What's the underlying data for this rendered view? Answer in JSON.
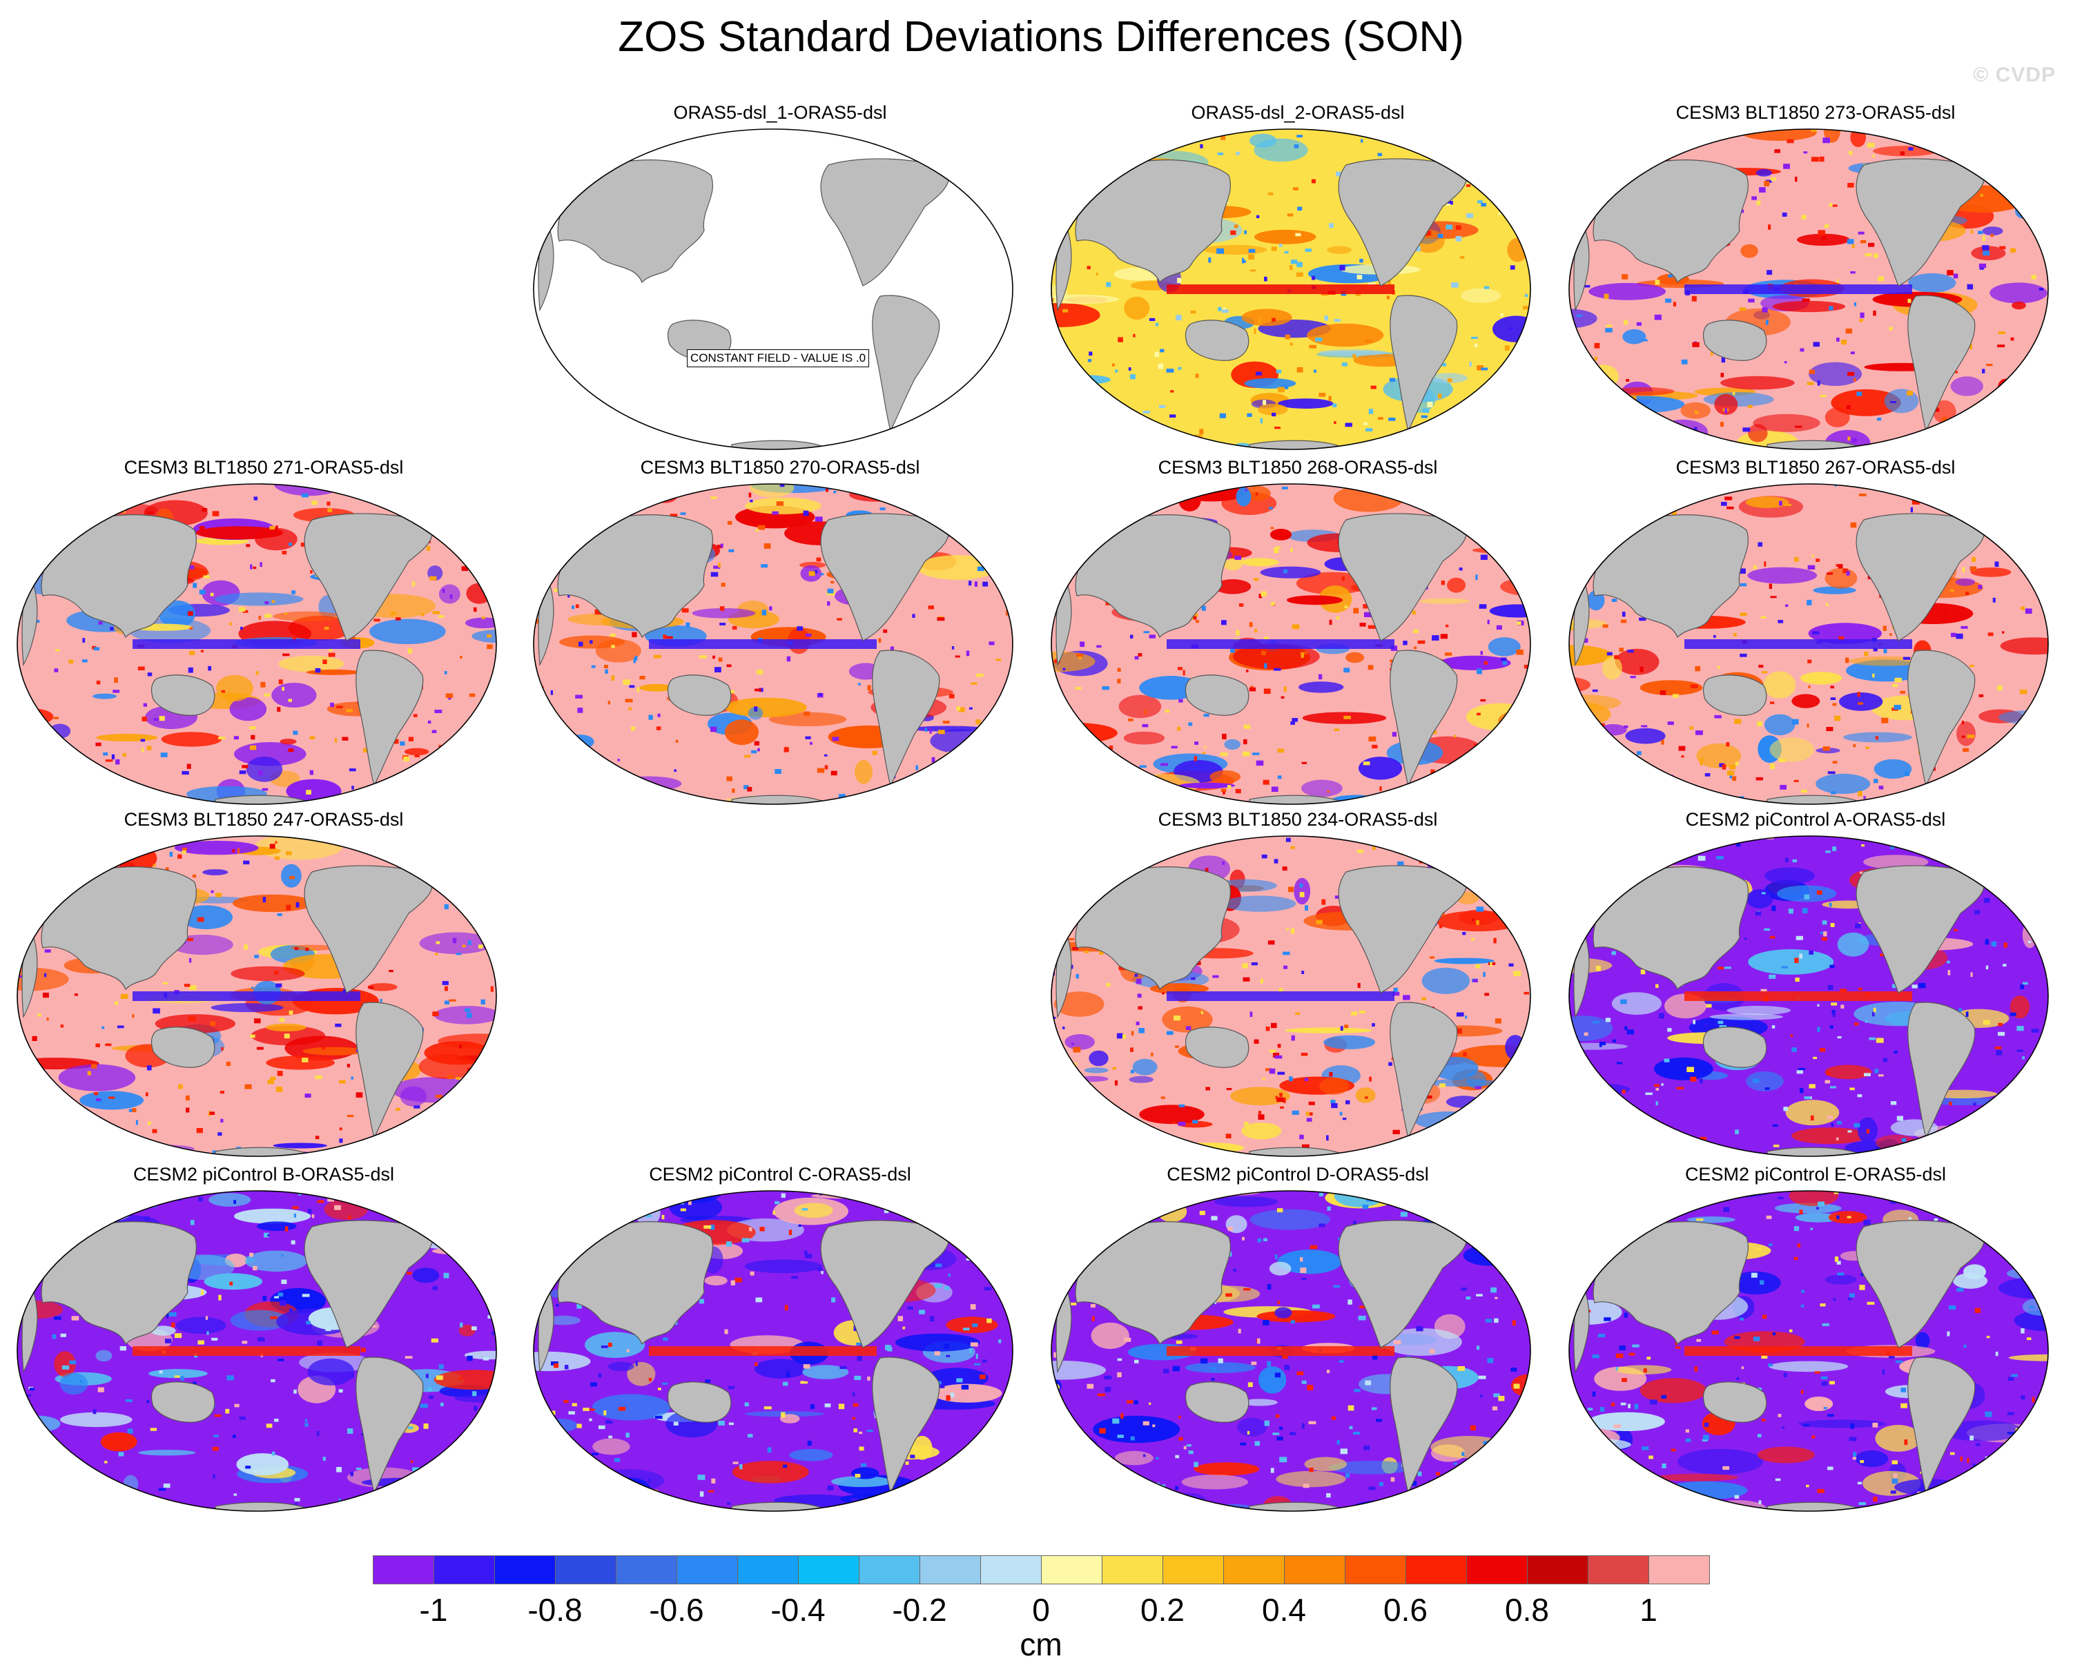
{
  "title": "ZOS Standard Deviations Differences (SON)",
  "watermark": "© CVDP",
  "panels": [
    {
      "title": "ORAS5-dsl_1-ORAS5-dsl",
      "pattern": "constant",
      "note": "CONSTANT FIELD - VALUE IS .0"
    },
    {
      "title": "ORAS5-dsl_2-ORAS5-dsl",
      "pattern": "mixed"
    },
    {
      "title": "CESM3 BLT1850 273-ORAS5-dsl",
      "pattern": "positive"
    },
    {
      "title": "CESM3 BLT1850 271-ORAS5-dsl",
      "pattern": "positive"
    },
    {
      "title": "CESM3 BLT1850 270-ORAS5-dsl",
      "pattern": "positive"
    },
    {
      "title": "CESM3 BLT1850 268-ORAS5-dsl",
      "pattern": "positive"
    },
    {
      "title": "CESM3 BLT1850 267-ORAS5-dsl",
      "pattern": "positive"
    },
    {
      "title": "CESM3 BLT1850 247-ORAS5-dsl",
      "pattern": "positive"
    },
    {
      "title": "CESM3 BLT1850 234-ORAS5-dsl",
      "pattern": "positive"
    },
    {
      "title": "CESM2 piControl A-ORAS5-dsl",
      "pattern": "negative"
    },
    {
      "title": "CESM2 piControl B-ORAS5-dsl",
      "pattern": "negative"
    },
    {
      "title": "CESM2 piControl C-ORAS5-dsl",
      "pattern": "negative"
    },
    {
      "title": "CESM2 piControl D-ORAS5-dsl",
      "pattern": "negative"
    },
    {
      "title": "CESM2 piControl E-ORAS5-dsl",
      "pattern": "negative"
    }
  ],
  "colorbar": {
    "unit": "cm",
    "tick_labels": [
      "-1",
      "-0.8",
      "-0.6",
      "-0.4",
      "-0.2",
      "0",
      "0.2",
      "0.4",
      "0.6",
      "0.8",
      "1"
    ],
    "colors": [
      "#8a1ef0",
      "#3a17f4",
      "#0d16f5",
      "#2d4be0",
      "#3c6fe6",
      "#2a89f5",
      "#169ff6",
      "#0abdf7",
      "#55bff0",
      "#96cdef",
      "#bfe3f6",
      "#fdf9a7",
      "#fce04a",
      "#fbc21d",
      "#fba40c",
      "#fb8403",
      "#fb5703",
      "#fb2103",
      "#ed0303",
      "#c50505",
      "#e04545",
      "#fbb0b0"
    ]
  }
}
